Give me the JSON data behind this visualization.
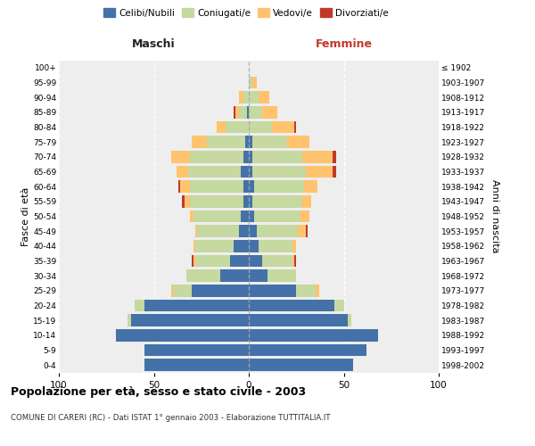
{
  "age_groups": [
    "0-4",
    "5-9",
    "10-14",
    "15-19",
    "20-24",
    "25-29",
    "30-34",
    "35-39",
    "40-44",
    "45-49",
    "50-54",
    "55-59",
    "60-64",
    "65-69",
    "70-74",
    "75-79",
    "80-84",
    "85-89",
    "90-94",
    "95-99",
    "100+"
  ],
  "birth_years": [
    "1998-2002",
    "1993-1997",
    "1988-1992",
    "1983-1987",
    "1978-1982",
    "1973-1977",
    "1968-1972",
    "1963-1967",
    "1958-1962",
    "1953-1957",
    "1948-1952",
    "1943-1947",
    "1938-1942",
    "1933-1937",
    "1928-1932",
    "1923-1927",
    "1918-1922",
    "1913-1917",
    "1908-1912",
    "1903-1907",
    "≤ 1902"
  ],
  "maschi": {
    "celibi": [
      55,
      55,
      70,
      62,
      55,
      30,
      15,
      10,
      8,
      5,
      4,
      3,
      3,
      4,
      3,
      2,
      0,
      1,
      0,
      0,
      0
    ],
    "coniugati": [
      0,
      0,
      0,
      2,
      5,
      10,
      18,
      18,
      20,
      22,
      25,
      28,
      28,
      28,
      28,
      20,
      12,
      4,
      3,
      0,
      0
    ],
    "vedovi": [
      0,
      0,
      0,
      0,
      0,
      1,
      0,
      1,
      1,
      1,
      2,
      3,
      5,
      6,
      10,
      8,
      5,
      2,
      2,
      0,
      0
    ],
    "divorziati": [
      0,
      0,
      0,
      0,
      0,
      0,
      0,
      1,
      0,
      0,
      0,
      1,
      1,
      0,
      0,
      0,
      0,
      1,
      0,
      0,
      0
    ]
  },
  "femmine": {
    "nubili": [
      55,
      62,
      68,
      52,
      45,
      25,
      10,
      7,
      5,
      4,
      3,
      2,
      3,
      2,
      2,
      2,
      0,
      0,
      0,
      0,
      0
    ],
    "coniugate": [
      0,
      0,
      0,
      2,
      5,
      10,
      15,
      16,
      18,
      22,
      24,
      26,
      26,
      28,
      26,
      18,
      12,
      7,
      5,
      2,
      0
    ],
    "vedove": [
      0,
      0,
      0,
      0,
      0,
      2,
      0,
      1,
      2,
      4,
      5,
      5,
      7,
      14,
      16,
      12,
      12,
      8,
      6,
      2,
      0
    ],
    "divorziate": [
      0,
      0,
      0,
      0,
      0,
      0,
      0,
      1,
      0,
      1,
      0,
      0,
      0,
      2,
      2,
      0,
      1,
      0,
      0,
      0,
      0
    ]
  },
  "colors": {
    "celibi": "#4472a8",
    "coniugati": "#c5d9a0",
    "vedovi": "#ffc36e",
    "divorziati": "#c0392b"
  },
  "xlim": 100,
  "title": "Popolazione per età, sesso e stato civile - 2003",
  "subtitle": "COMUNE DI CARERI (RC) - Dati ISTAT 1° gennaio 2003 - Elaborazione TUTTITALIA.IT",
  "ylabel_left": "Fasce di età",
  "ylabel_right": "Anni di nascita",
  "xlabel_left": "Maschi",
  "xlabel_right": "Femmine",
  "bg_color": "#ffffff",
  "plot_bg": "#eeeeee"
}
